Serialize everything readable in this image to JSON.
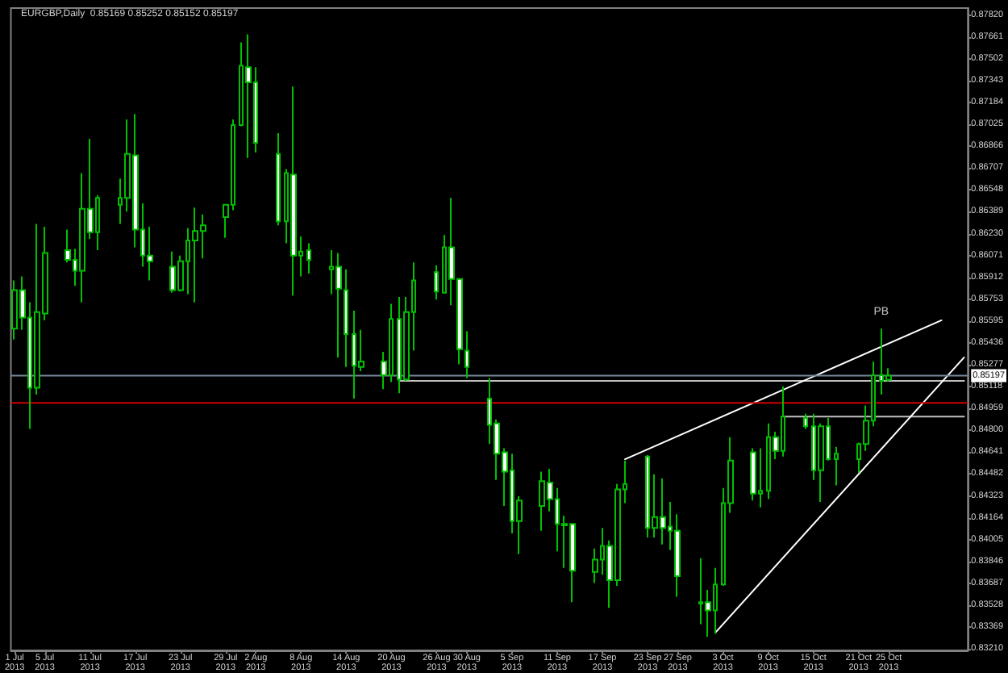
{
  "chart_data": {
    "type": "candlestick",
    "title": "EURGBP,Daily  0.85169 0.85252 0.85152 0.85197",
    "grid": false,
    "marker": "none",
    "line_style": "solid",
    "ylim": [
      0.832,
      0.8787
    ],
    "xlim": [
      "2013-06-30T12:00",
      "2013-11-04T12:00"
    ],
    "yticks": [
      {
        "value": 0.8782,
        "label": "0.87820"
      },
      {
        "value": 0.87661,
        "label": "0.87661"
      },
      {
        "value": 0.87502,
        "label": "0.87502"
      },
      {
        "value": 0.87343,
        "label": "0.87343"
      },
      {
        "value": 0.87184,
        "label": "0.87184"
      },
      {
        "value": 0.87025,
        "label": "0.87025"
      },
      {
        "value": 0.86866,
        "label": "0.86866"
      },
      {
        "value": 0.86707,
        "label": "0.86707"
      },
      {
        "value": 0.86548,
        "label": "0.86548"
      },
      {
        "value": 0.86389,
        "label": "0.86389"
      },
      {
        "value": 0.8623,
        "label": "0.86230"
      },
      {
        "value": 0.86071,
        "label": "0.86071"
      },
      {
        "value": 0.85912,
        "label": "0.85912"
      },
      {
        "value": 0.85753,
        "label": "0.85753"
      },
      {
        "value": 0.85595,
        "label": "0.85595"
      },
      {
        "value": 0.85436,
        "label": "0.85436"
      },
      {
        "value": 0.85277,
        "label": "0.85277"
      },
      {
        "value": 0.85118,
        "label": "0.85118"
      },
      {
        "value": 0.84959,
        "label": "0.84959"
      },
      {
        "value": 0.848,
        "label": "0.84800"
      },
      {
        "value": 0.84641,
        "label": "0.84641"
      },
      {
        "value": 0.84482,
        "label": "0.84482"
      },
      {
        "value": 0.84323,
        "label": "0.84323"
      },
      {
        "value": 0.84164,
        "label": "0.84164"
      },
      {
        "value": 0.84005,
        "label": "0.84005"
      },
      {
        "value": 0.83846,
        "label": "0.83846"
      },
      {
        "value": 0.83687,
        "label": "0.83687"
      },
      {
        "value": 0.83528,
        "label": "0.83528"
      },
      {
        "value": 0.83369,
        "label": "0.83369"
      },
      {
        "value": 0.8321,
        "label": "0.83210"
      }
    ],
    "xticks": [
      {
        "value": "2013-07-01",
        "label": "1 Jul 2013"
      },
      {
        "value": "2013-07-05",
        "label": "5 Jul 2013"
      },
      {
        "value": "2013-07-11",
        "label": "11 Jul 2013"
      },
      {
        "value": "2013-07-17",
        "label": "17 Jul 2013"
      },
      {
        "value": "2013-07-23",
        "label": "23 Jul 2013"
      },
      {
        "value": "2013-07-29",
        "label": "29 Jul 2013"
      },
      {
        "value": "2013-08-02",
        "label": "2 Aug 2013"
      },
      {
        "value": "2013-08-08",
        "label": "8 Aug 2013"
      },
      {
        "value": "2013-08-14",
        "label": "14 Aug 2013"
      },
      {
        "value": "2013-08-20",
        "label": "20 Aug 2013"
      },
      {
        "value": "2013-08-26",
        "label": "26 Aug 2013"
      },
      {
        "value": "2013-08-30",
        "label": "30 Aug 2013"
      },
      {
        "value": "2013-09-05",
        "label": "5 Sep 2013"
      },
      {
        "value": "2013-09-11",
        "label": "11 Sep 2013"
      },
      {
        "value": "2013-09-17",
        "label": "17 Sep 2013"
      },
      {
        "value": "2013-09-23",
        "label": "23 Sep 2013"
      },
      {
        "value": "2013-09-27",
        "label": "27 Sep 2013"
      },
      {
        "value": "2013-10-03",
        "label": "3 Oct 2013"
      },
      {
        "value": "2013-10-09",
        "label": "9 Oct 2013"
      },
      {
        "value": "2013-10-15",
        "label": "15 Oct 2013"
      },
      {
        "value": "2013-10-21",
        "label": "21 Oct 2013"
      },
      {
        "value": "2013-10-25",
        "label": "25 Oct 2013"
      }
    ],
    "ref_lines": [
      {
        "axis": "y",
        "value": 0.85197,
        "label": "0.85197",
        "color": "#778899"
      },
      {
        "axis": "y",
        "value": 0.85,
        "color": "#cc0000"
      }
    ],
    "annotations": [
      {
        "text": "PB",
        "x": "2013-10-24",
        "y": 0.8554
      }
    ],
    "series": [
      {
        "color": "#00c000",
        "x": [
          "2013-07-01",
          "2013-07-02",
          "2013-07-03",
          "2013-07-04",
          "2013-07-05",
          "2013-07-08",
          "2013-07-09",
          "2013-07-10",
          "2013-07-11",
          "2013-07-12",
          "2013-07-15",
          "2013-07-16",
          "2013-07-17",
          "2013-07-18",
          "2013-07-19",
          "2013-07-22",
          "2013-07-23",
          "2013-07-24",
          "2013-07-25",
          "2013-07-26",
          "2013-07-29",
          "2013-07-30",
          "2013-07-31",
          "2013-08-01",
          "2013-08-02",
          "2013-08-05",
          "2013-08-06",
          "2013-08-07",
          "2013-08-08",
          "2013-08-09",
          "2013-08-12",
          "2013-08-13",
          "2013-08-14",
          "2013-08-15",
          "2013-08-16",
          "2013-08-19",
          "2013-08-20",
          "2013-08-21",
          "2013-08-22",
          "2013-08-23",
          "2013-08-26",
          "2013-08-27",
          "2013-08-28",
          "2013-08-29",
          "2013-08-30",
          "2013-09-02",
          "2013-09-03",
          "2013-09-04",
          "2013-09-05",
          "2013-09-06",
          "2013-09-09",
          "2013-09-10",
          "2013-09-11",
          "2013-09-12",
          "2013-09-13",
          "2013-09-16",
          "2013-09-17",
          "2013-09-18",
          "2013-09-19",
          "2013-09-20",
          "2013-09-23",
          "2013-09-24",
          "2013-09-25",
          "2013-09-26",
          "2013-09-27",
          "2013-09-30",
          "2013-10-01",
          "2013-10-02",
          "2013-10-03",
          "2013-10-04",
          "2013-10-07",
          "2013-10-08",
          "2013-10-09",
          "2013-10-10",
          "2013-10-11",
          "2013-10-14",
          "2013-10-15",
          "2013-10-16",
          "2013-10-17",
          "2013-10-18",
          "2013-10-21",
          "2013-10-22",
          "2013-10-23",
          "2013-10-24",
          "2013-10-25"
        ],
        "ohlc": [
          [
            0.8554,
            0.8589,
            0.8546,
            0.8582
          ],
          [
            0.8582,
            0.8592,
            0.8553,
            0.8562
          ],
          [
            0.8562,
            0.8573,
            0.8481,
            0.8511
          ],
          [
            0.8511,
            0.863,
            0.8506,
            0.8566
          ],
          [
            0.8565,
            0.8628,
            0.856,
            0.8609
          ],
          [
            0.8611,
            0.8626,
            0.8602,
            0.8604
          ],
          [
            0.8604,
            0.8612,
            0.8585,
            0.8596
          ],
          [
            0.8596,
            0.8667,
            0.8573,
            0.8641
          ],
          [
            0.8641,
            0.8692,
            0.8619,
            0.8624
          ],
          [
            0.8624,
            0.8651,
            0.8611,
            0.8649
          ],
          [
            0.8644,
            0.8663,
            0.863,
            0.8649
          ],
          [
            0.8649,
            0.8706,
            0.8639,
            0.8681
          ],
          [
            0.868,
            0.871,
            0.8613,
            0.8626
          ],
          [
            0.8626,
            0.8645,
            0.8599,
            0.8607
          ],
          [
            0.8607,
            0.8628,
            0.8589,
            0.8603
          ],
          [
            0.8599,
            0.861,
            0.858,
            0.8582
          ],
          [
            0.8582,
            0.8607,
            0.8581,
            0.8603
          ],
          [
            0.8603,
            0.8627,
            0.8579,
            0.8618
          ],
          [
            0.8618,
            0.8642,
            0.8573,
            0.8625
          ],
          [
            0.8625,
            0.8637,
            0.8605,
            0.8629
          ],
          [
            0.8635,
            0.8644,
            0.862,
            0.8644
          ],
          [
            0.8644,
            0.8706,
            0.864,
            0.8702
          ],
          [
            0.8702,
            0.8762,
            0.8701,
            0.8745
          ],
          [
            0.8744,
            0.8768,
            0.8678,
            0.8733
          ],
          [
            0.8733,
            0.8744,
            0.8682,
            0.8689
          ],
          [
            0.8681,
            0.8696,
            0.8629,
            0.8632
          ],
          [
            0.8632,
            0.867,
            0.8616,
            0.8667
          ],
          [
            0.8666,
            0.873,
            0.8578,
            0.8607
          ],
          [
            0.8607,
            0.8621,
            0.8592,
            0.861
          ],
          [
            0.8611,
            0.8616,
            0.8594,
            0.8604
          ],
          [
            0.8597,
            0.8611,
            0.8579,
            0.8599
          ],
          [
            0.8599,
            0.8609,
            0.8533,
            0.8583
          ],
          [
            0.8582,
            0.8597,
            0.8526,
            0.855
          ],
          [
            0.855,
            0.8567,
            0.8503,
            0.8527
          ],
          [
            0.8526,
            0.8553,
            0.8523,
            0.853
          ],
          [
            0.853,
            0.8537,
            0.851,
            0.852
          ],
          [
            0.852,
            0.8572,
            0.8515,
            0.8561
          ],
          [
            0.8561,
            0.8577,
            0.8507,
            0.8517
          ],
          [
            0.8517,
            0.8577,
            0.8516,
            0.8566
          ],
          [
            0.8566,
            0.8602,
            0.8538,
            0.8589
          ],
          [
            0.8595,
            0.86,
            0.8575,
            0.8581
          ],
          [
            0.858,
            0.8622,
            0.858,
            0.8613
          ],
          [
            0.8613,
            0.8649,
            0.8571,
            0.859
          ],
          [
            0.859,
            0.859,
            0.8528,
            0.8539
          ],
          [
            0.8538,
            0.8552,
            0.8518,
            0.8526
          ],
          [
            0.8503,
            0.8518,
            0.847,
            0.8484
          ],
          [
            0.8485,
            0.8488,
            0.8444,
            0.8463
          ],
          [
            0.8464,
            0.8467,
            0.8425,
            0.845
          ],
          [
            0.8451,
            0.8463,
            0.8405,
            0.8414
          ],
          [
            0.8414,
            0.8432,
            0.839,
            0.8429
          ],
          [
            0.8425,
            0.845,
            0.8407,
            0.8443
          ],
          [
            0.8442,
            0.8452,
            0.8421,
            0.843
          ],
          [
            0.843,
            0.8438,
            0.8392,
            0.8412
          ],
          [
            0.8411,
            0.8418,
            0.838,
            0.8412
          ],
          [
            0.8412,
            0.8412,
            0.8355,
            0.8378
          ],
          [
            0.8377,
            0.8394,
            0.8369,
            0.8386
          ],
          [
            0.8386,
            0.8409,
            0.8375,
            0.8396
          ],
          [
            0.8396,
            0.84,
            0.8351,
            0.8371
          ],
          [
            0.8371,
            0.8441,
            0.8367,
            0.8437
          ],
          [
            0.8437,
            0.8458,
            0.8427,
            0.8441
          ],
          [
            0.8461,
            0.8462,
            0.8402,
            0.8409
          ],
          [
            0.8409,
            0.8448,
            0.8402,
            0.8417
          ],
          [
            0.8417,
            0.8445,
            0.8397,
            0.8409
          ],
          [
            0.841,
            0.8428,
            0.8393,
            0.8407
          ],
          [
            0.8407,
            0.8419,
            0.8359,
            0.8374
          ],
          [
            0.8354,
            0.8387,
            0.8339,
            0.8355
          ],
          [
            0.8355,
            0.8364,
            0.833,
            0.8349
          ],
          [
            0.8349,
            0.838,
            0.8332,
            0.8368
          ],
          [
            0.8368,
            0.8438,
            0.8367,
            0.8427
          ],
          [
            0.8427,
            0.8475,
            0.842,
            0.8458
          ],
          [
            0.8464,
            0.8467,
            0.8429,
            0.8434
          ],
          [
            0.8434,
            0.8467,
            0.8424,
            0.8436
          ],
          [
            0.8436,
            0.8485,
            0.843,
            0.8475
          ],
          [
            0.8475,
            0.8479,
            0.8459,
            0.8465
          ],
          [
            0.8465,
            0.8512,
            0.8461,
            0.849
          ],
          [
            0.8489,
            0.8492,
            0.8481,
            0.8483
          ],
          [
            0.8483,
            0.8492,
            0.8444,
            0.8451
          ],
          [
            0.8451,
            0.8485,
            0.8428,
            0.8483
          ],
          [
            0.8483,
            0.8489,
            0.8458,
            0.8459
          ],
          [
            0.8459,
            0.8468,
            0.844,
            0.8463
          ],
          [
            0.8459,
            0.8471,
            0.8449,
            0.847
          ],
          [
            0.847,
            0.8498,
            0.8465,
            0.8487
          ],
          [
            0.8487,
            0.853,
            0.8483,
            0.852
          ],
          [
            0.852,
            0.8554,
            0.8506,
            0.8516
          ],
          [
            0.85169,
            0.85252,
            0.85152,
            0.85197
          ]
        ]
      },
      {
        "type": "line",
        "color": "#c0c0c0",
        "x": [
          "2013-08-21",
          "2013-11-04"
        ],
        "values": [
          0.8516,
          0.8516
        ]
      },
      {
        "type": "line",
        "color": "#c0c0c0",
        "x": [
          "2013-10-11",
          "2013-11-04"
        ],
        "values": [
          0.849,
          0.849
        ]
      },
      {
        "type": "line",
        "color": "#ffffff",
        "x": [
          "2013-09-20",
          "2013-11-01"
        ],
        "values": [
          0.8459,
          0.856
        ]
      },
      {
        "type": "line",
        "color": "#ffffff",
        "x": [
          "2013-10-02",
          "2013-11-04"
        ],
        "values": [
          0.8333,
          0.8533
        ]
      }
    ]
  }
}
